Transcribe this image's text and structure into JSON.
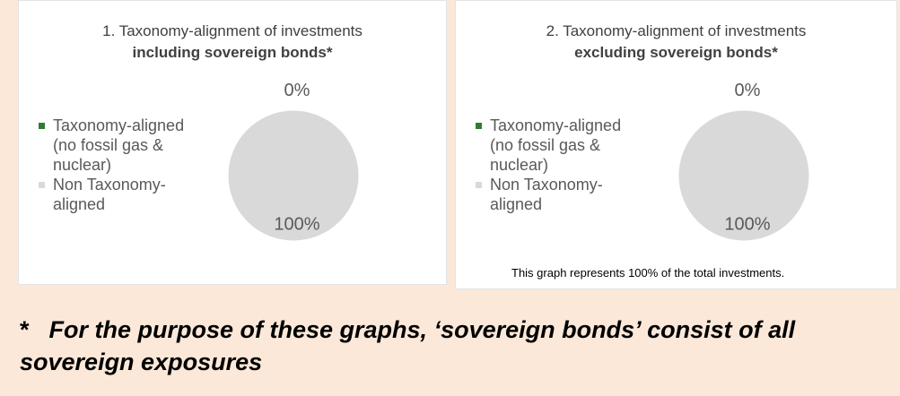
{
  "chart_data": [
    {
      "type": "pie",
      "title": "1. Taxonomy-alignment of investments",
      "subtitle": "including sovereign bonds*",
      "categories": [
        "Taxonomy-aligned (no fossil gas & nuclear)",
        "Non Taxonomy-aligned"
      ],
      "values": [
        0,
        100
      ],
      "value_labels": [
        "0%",
        "100%"
      ],
      "colors": [
        "#2e7d32",
        "#d9d9d9"
      ]
    },
    {
      "type": "pie",
      "title": "2. Taxonomy-alignment of investments",
      "subtitle": "excluding sovereign bonds*",
      "categories": [
        "Taxonomy-aligned (no fossil gas & nuclear)",
        "Non Taxonomy-aligned"
      ],
      "values": [
        0,
        100
      ],
      "value_labels": [
        "0%",
        "100%"
      ],
      "colors": [
        "#2e7d32",
        "#d9d9d9"
      ],
      "note": "This graph represents 100% of the total investments."
    }
  ],
  "footnote": {
    "marker": "*",
    "text": "For the purpose of these graphs, ‘sovereign bonds’ consist of all sovereign exposures"
  }
}
